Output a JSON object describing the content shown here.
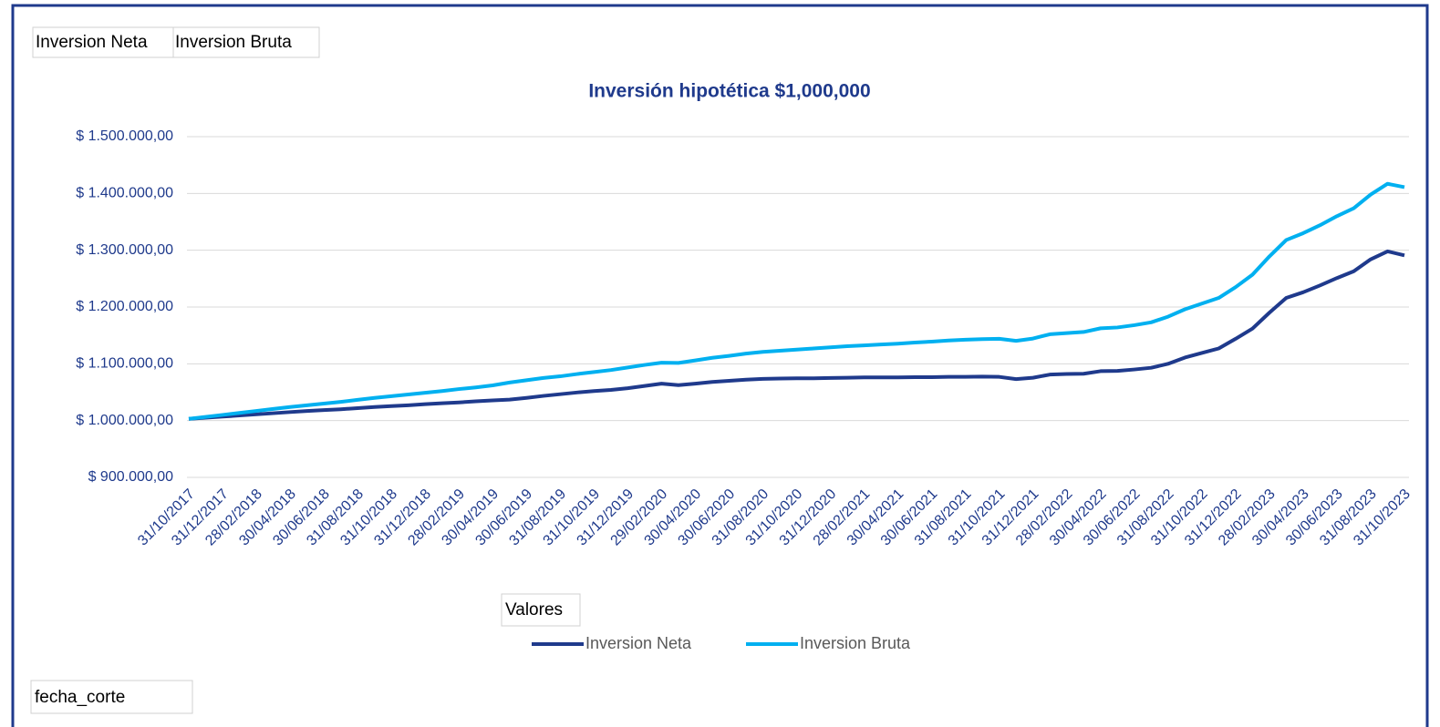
{
  "chart_data": {
    "type": "line",
    "title": "Inversión hipotética $1,000,000",
    "filter_buttons": [
      "Inversion Neta",
      "Inversion Bruta"
    ],
    "values_field": "Valores",
    "axis_field": "fecha_corte",
    "categories": [
      "31/10/2017",
      null,
      "31/12/2017",
      null,
      "28/02/2018",
      null,
      "30/04/2018",
      null,
      "30/06/2018",
      null,
      "31/08/2018",
      null,
      "31/10/2018",
      null,
      "31/12/2018",
      null,
      "28/02/2019",
      null,
      "30/04/2019",
      null,
      "30/06/2019",
      null,
      "31/08/2019",
      null,
      "31/10/2019",
      null,
      "31/12/2019",
      null,
      "29/02/2020",
      null,
      "30/04/2020",
      null,
      "30/06/2020",
      null,
      "31/08/2020",
      null,
      "31/10/2020",
      null,
      "31/12/2020",
      null,
      "28/02/2021",
      null,
      "30/04/2021",
      null,
      "30/06/2021",
      null,
      "31/08/2021",
      null,
      "31/10/2021",
      null,
      "31/12/2021",
      null,
      "28/02/2022",
      null,
      "30/04/2022",
      null,
      "30/06/2022",
      null,
      "31/08/2022",
      null,
      "31/10/2022",
      null,
      "31/12/2022",
      null,
      "28/02/2023",
      null,
      "30/04/2023",
      null,
      "30/06/2023",
      null,
      "31/08/2023",
      null,
      "31/10/2023"
    ],
    "series": [
      {
        "name": "Inversion Neta",
        "color": "#1f3a8c",
        "values": [
          1003000,
          1005000,
          1007000,
          1009000,
          1011000,
          1013000,
          1015000,
          1017000,
          1018500,
          1020000,
          1022000,
          1024000,
          1025500,
          1027000,
          1029000,
          1030500,
          1032000,
          1034000,
          1035500,
          1037000,
          1040000,
          1043500,
          1046500,
          1049500,
          1052000,
          1054000,
          1057000,
          1061000,
          1065000,
          1062500,
          1065000,
          1068000,
          1070000,
          1072000,
          1073500,
          1074000,
          1074500,
          1074500,
          1075000,
          1075500,
          1076000,
          1076000,
          1076000,
          1076500,
          1076500,
          1077000,
          1077000,
          1077500,
          1077000,
          1073000,
          1075500,
          1081000,
          1082000,
          1082500,
          1087000,
          1087500,
          1090000,
          1093000,
          1100000,
          1111000,
          1119000,
          1127000,
          1144000,
          1162000,
          1190000,
          1216000,
          1226000,
          1238000,
          1251000,
          1263000,
          1284000,
          1298000,
          1291000
        ]
      },
      {
        "name": "Inversion Bruta",
        "color": "#00b0f0",
        "values": [
          1003000,
          1006500,
          1010000,
          1013500,
          1017000,
          1020500,
          1024000,
          1027000,
          1030000,
          1033000,
          1036500,
          1040000,
          1043000,
          1046000,
          1049000,
          1052000,
          1055500,
          1058500,
          1062000,
          1067000,
          1071000,
          1075000,
          1078000,
          1082000,
          1085500,
          1089000,
          1093500,
          1098000,
          1102000,
          1101500,
          1106000,
          1110500,
          1114000,
          1118000,
          1121000,
          1123000,
          1125000,
          1127000,
          1129000,
          1131000,
          1132500,
          1134000,
          1135500,
          1137500,
          1139000,
          1141000,
          1142500,
          1143500,
          1144000,
          1140500,
          1144500,
          1152000,
          1154000,
          1156000,
          1162500,
          1164000,
          1168000,
          1173000,
          1183000,
          1196000,
          1206000,
          1216000,
          1235000,
          1257000,
          1289000,
          1318000,
          1330000,
          1344000,
          1360000,
          1374000,
          1398000,
          1417000,
          1411000
        ]
      }
    ],
    "ylim": [
      900000,
      1500000
    ],
    "yticks": [
      {
        "value": 900000,
        "label": "$ 900.000,00"
      },
      {
        "value": 1000000,
        "label": "$ 1.000.000,00"
      },
      {
        "value": 1100000,
        "label": "$ 1.100.000,00"
      },
      {
        "value": 1200000,
        "label": "$ 1.200.000,00"
      },
      {
        "value": 1300000,
        "label": "$ 1.300.000,00"
      },
      {
        "value": 1400000,
        "label": "$ 1.400.000,00"
      },
      {
        "value": 1500000,
        "label": "$ 1.500.000,00"
      }
    ],
    "grid": true
  }
}
